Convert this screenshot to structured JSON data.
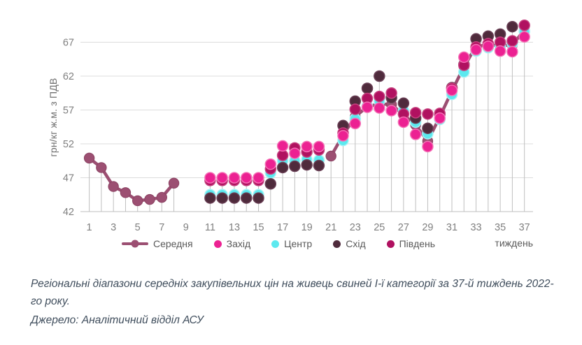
{
  "chart_data": {
    "type": "scatter",
    "title": "",
    "ylabel": "грн/кг ж.м. з ПДВ",
    "xlabel": "тиждень",
    "ylim": [
      42,
      70.8
    ],
    "xlim": [
      1,
      37
    ],
    "yticks": [
      42,
      47,
      52,
      57,
      62,
      67
    ],
    "xticks": [
      1,
      3,
      5,
      7,
      9,
      11,
      13,
      15,
      17,
      19,
      21,
      23,
      25,
      27,
      29,
      31,
      33,
      35,
      37
    ],
    "grid": true,
    "legend_position": "bottom",
    "units": "грн/кг живої маси з ПДВ",
    "series": [
      {
        "name": "Середня",
        "type": "line",
        "color": "#9C4F72",
        "edge": "#8B4262",
        "points": [
          [
            1,
            49.9
          ],
          [
            2,
            48.5
          ],
          [
            3,
            45.7
          ],
          [
            4,
            44.8
          ],
          [
            5,
            43.6
          ],
          [
            6,
            43.8
          ],
          [
            7,
            44.1
          ],
          [
            8,
            46.2
          ],
          [
            21,
            50.2
          ],
          [
            22,
            53.3
          ],
          [
            23,
            56.0
          ],
          [
            24,
            57.5
          ],
          [
            25,
            57.9
          ],
          [
            26,
            57.8
          ],
          [
            27,
            56.3
          ],
          [
            28,
            54.8
          ],
          [
            29,
            52.4
          ],
          [
            30,
            56.0
          ],
          [
            31,
            59.8
          ],
          [
            32,
            63.4
          ],
          [
            33,
            66.4
          ],
          [
            34,
            66.6
          ],
          [
            35,
            66.5
          ],
          [
            36,
            66.6
          ],
          [
            37,
            68.8
          ]
        ]
      },
      {
        "name": "Захід",
        "type": "scatter",
        "color": "#EC2192",
        "edge": "#F470B5",
        "points": [
          [
            11,
            47.0
          ],
          [
            12,
            47.0
          ],
          [
            13,
            47.0
          ],
          [
            14,
            47.0
          ],
          [
            15,
            47.0
          ],
          [
            16,
            49.0
          ],
          [
            17,
            51.7
          ],
          [
            18,
            50.6
          ],
          [
            19,
            51.6
          ],
          [
            20,
            51.6
          ],
          [
            22,
            53.2
          ],
          [
            23,
            55.0
          ],
          [
            24,
            57.4
          ],
          [
            25,
            57.3
          ],
          [
            26,
            56.9
          ],
          [
            27,
            55.2
          ],
          [
            28,
            53.4
          ],
          [
            29,
            51.6
          ],
          [
            30,
            55.8
          ],
          [
            31,
            59.9
          ],
          [
            32,
            64.8
          ],
          [
            33,
            65.9
          ],
          [
            34,
            66.4
          ],
          [
            35,
            65.7
          ],
          [
            36,
            65.6
          ],
          [
            37,
            67.8
          ]
        ]
      },
      {
        "name": "Центр",
        "type": "scatter",
        "color": "#5CE9EF",
        "edge": "#A8F4F6",
        "points": [
          [
            11,
            44.5
          ],
          [
            12,
            44.5
          ],
          [
            13,
            44.5
          ],
          [
            14,
            44.5
          ],
          [
            15,
            44.5
          ],
          [
            16,
            47.7
          ],
          [
            17,
            49.5
          ],
          [
            18,
            49.5
          ],
          [
            19,
            49.7
          ],
          [
            20,
            49.6
          ],
          [
            22,
            52.5
          ],
          [
            23,
            55.7
          ],
          [
            24,
            57.6
          ],
          [
            25,
            58.3
          ],
          [
            26,
            58.8
          ],
          [
            27,
            56.9
          ],
          [
            28,
            55.2
          ],
          [
            29,
            53.5
          ],
          [
            30,
            55.6
          ],
          [
            31,
            59.3
          ],
          [
            32,
            62.6
          ],
          [
            33,
            65.7
          ],
          [
            34,
            66.2
          ],
          [
            35,
            66.4
          ],
          [
            36,
            66.8
          ],
          [
            37,
            68.6
          ]
        ]
      },
      {
        "name": "Схід",
        "type": "scatter",
        "color": "#4F2B3C",
        "edge": "#6A4056",
        "points": [
          [
            11,
            44.0
          ],
          [
            12,
            44.0
          ],
          [
            13,
            44.0
          ],
          [
            14,
            44.0
          ],
          [
            15,
            44.0
          ],
          [
            16,
            46.1
          ],
          [
            17,
            48.5
          ],
          [
            18,
            48.7
          ],
          [
            19,
            48.9
          ],
          [
            20,
            48.8
          ],
          [
            22,
            54.7
          ],
          [
            23,
            58.3
          ],
          [
            24,
            60.2
          ],
          [
            25,
            62.0
          ],
          [
            26,
            58.8
          ],
          [
            27,
            58.0
          ],
          [
            28,
            55.8
          ],
          [
            29,
            54.3
          ],
          [
            30,
            56.4
          ],
          [
            31,
            60.3
          ],
          [
            32,
            63.7
          ],
          [
            33,
            67.5
          ],
          [
            34,
            67.9
          ],
          [
            35,
            68.2
          ],
          [
            36,
            69.3
          ]
        ]
      },
      {
        "name": "Південь",
        "type": "scatter",
        "color": "#B01160",
        "edge": "#C6417F",
        "points": [
          [
            11,
            46.6
          ],
          [
            12,
            46.6
          ],
          [
            13,
            46.6
          ],
          [
            14,
            46.6
          ],
          [
            15,
            46.6
          ],
          [
            16,
            48.3
          ],
          [
            17,
            50.3
          ],
          [
            18,
            51.4
          ],
          [
            19,
            50.8
          ],
          [
            20,
            51.1
          ],
          [
            22,
            53.6
          ],
          [
            23,
            57.1
          ],
          [
            24,
            58.7
          ],
          [
            25,
            59.0
          ],
          [
            26,
            59.5
          ],
          [
            27,
            56.4
          ],
          [
            28,
            56.6
          ],
          [
            29,
            56.4
          ],
          [
            30,
            56.5
          ],
          [
            31,
            60.2
          ],
          [
            32,
            63.6
          ],
          [
            33,
            66.3
          ],
          [
            34,
            66.8
          ],
          [
            35,
            67.0
          ],
          [
            36,
            67.2
          ],
          [
            37,
            69.5
          ]
        ]
      }
    ]
  },
  "caption": {
    "title": "Регіональні діапазони середніх закупівельних цін на живець свиней І-ї категорії за 37-й тиждень 2022-го року.",
    "source": "Джерело: Аналітичний відділ АСУ"
  }
}
